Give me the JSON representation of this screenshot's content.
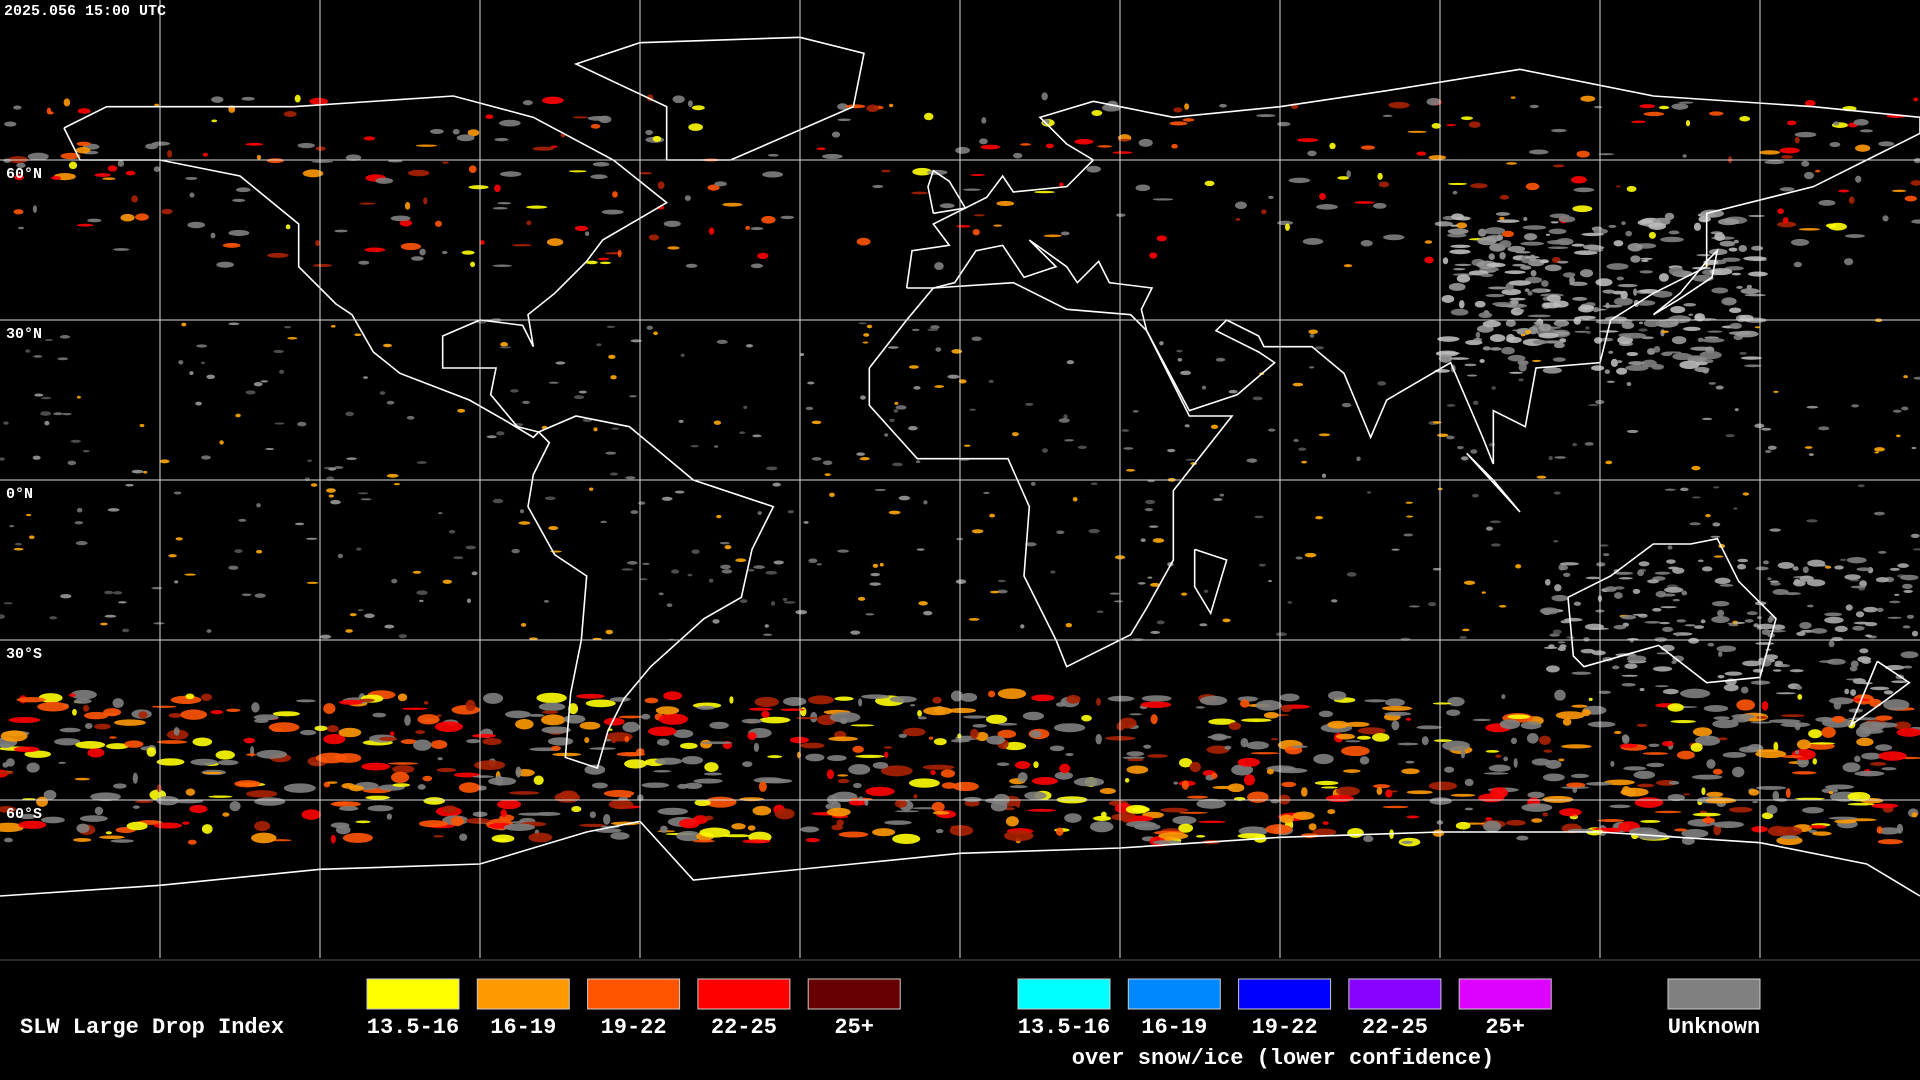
{
  "timestamp": "2025.056 15:00 UTC",
  "latitude_labels": [
    "60°N",
    "30°N",
    "0°N",
    "30°S",
    "60°S"
  ],
  "legend": {
    "title": "SLW Large Drop Index",
    "groups": [
      {
        "items": [
          {
            "label": "13.5-16",
            "color": "#ffff00"
          },
          {
            "label": "16-19",
            "color": "#ff9900"
          },
          {
            "label": "19-22",
            "color": "#ff5500"
          },
          {
            "label": "22-25",
            "color": "#ff0000"
          },
          {
            "label": "25+",
            "color": "#660000"
          }
        ]
      },
      {
        "items": [
          {
            "label": "13.5-16",
            "color": "#00ffff"
          },
          {
            "label": "16-19",
            "color": "#0088ff"
          },
          {
            "label": "19-22",
            "color": "#0000ff"
          },
          {
            "label": "22-25",
            "color": "#8800ff"
          },
          {
            "label": "25+",
            "color": "#dd00ff"
          }
        ],
        "caption": "over snow/ice (lower confidence)"
      }
    ],
    "unknown": {
      "label": "Unknown",
      "color": "#808080"
    }
  }
}
